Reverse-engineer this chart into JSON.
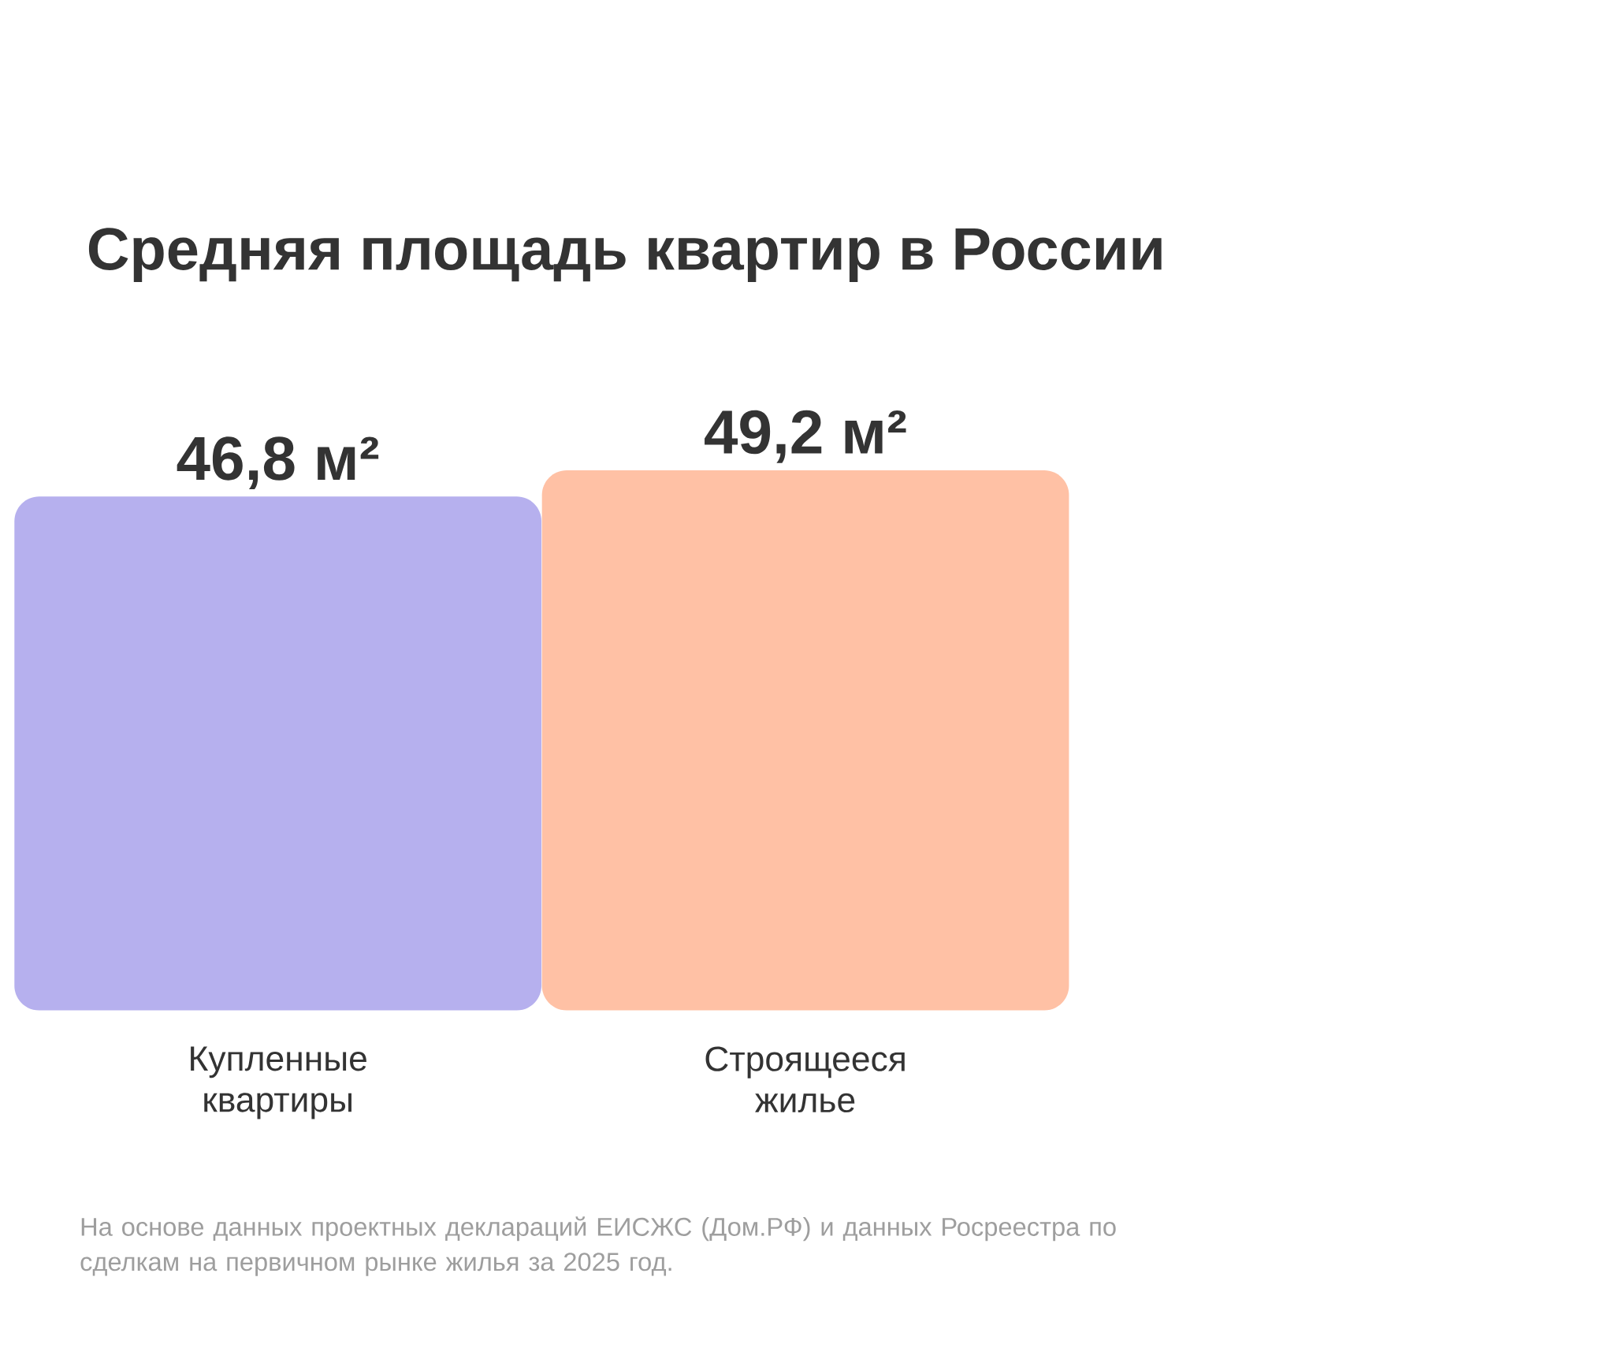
{
  "chart_data": {
    "type": "bar",
    "title": "Средняя площадь квартир в России",
    "categories": [
      "Купленные квартиры",
      "Строящееся жилье"
    ],
    "values": [
      46.8,
      49.2
    ],
    "colors": [
      "#b6b0ee",
      "#ffc1a5"
    ],
    "value_labels": [
      "46,8 м²",
      "49,2 м²"
    ],
    "annotations": [
      "На основе данных проектных деклараций ЕИСЖС (Дом.РФ) и данных Росреестра по сделкам на первичном рынке жилья за 2025 год."
    ]
  }
}
